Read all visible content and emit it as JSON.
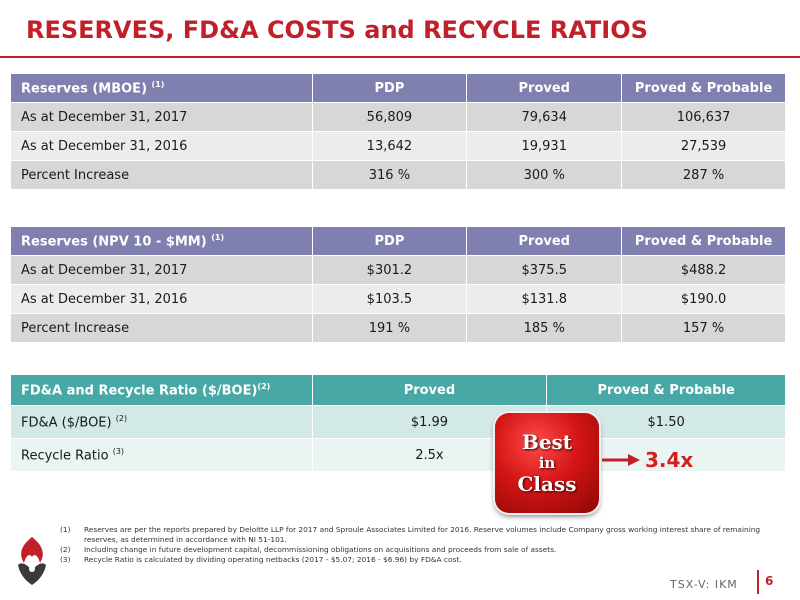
{
  "title": "RESERVES, FD&A COSTS and RECYCLE RATIOS",
  "table1": {
    "header": {
      "label": "Reserves (MBOE)",
      "note": "(1)",
      "cols": [
        "PDP",
        "Proved",
        "Proved & Probable"
      ]
    },
    "rows": [
      {
        "label": "As at December 31, 2017",
        "values": [
          "56,809",
          "79,634",
          "106,637"
        ]
      },
      {
        "label": "As at December 31, 2016",
        "values": [
          "13,642",
          "19,931",
          "27,539"
        ]
      },
      {
        "label": "Percent Increase",
        "values": [
          "316 %",
          "300 %",
          "287 %"
        ]
      }
    ]
  },
  "table2": {
    "header": {
      "label": "Reserves (NPV 10 - $MM)",
      "note": "(1)",
      "cols": [
        "PDP",
        "Proved",
        "Proved & Probable"
      ]
    },
    "rows": [
      {
        "label": "As at December 31, 2017",
        "values": [
          "$301.2",
          "$375.5",
          "$488.2"
        ]
      },
      {
        "label": "As at December 31, 2016",
        "values": [
          "$103.5",
          "$131.8",
          "$190.0"
        ]
      },
      {
        "label": "Percent Increase",
        "values": [
          "191 %",
          "185 %",
          "157 %"
        ]
      }
    ]
  },
  "table3": {
    "header": {
      "label": "FD&A and Recycle Ratio ($/BOE)",
      "note": "(2)",
      "cols": [
        "Proved",
        "Proved & Probable"
      ]
    },
    "rows": [
      {
        "label": "FD&A ($/BOE)",
        "note": "(2)",
        "values": [
          "$1.99",
          "$1.50"
        ]
      },
      {
        "label": "Recycle Ratio",
        "note": "(3)",
        "values": [
          "2.5x",
          ""
        ]
      }
    ]
  },
  "badge": {
    "line1": "Best",
    "line2": "in",
    "line3": "Class"
  },
  "highlight_value": "3.4x",
  "footnotes": [
    {
      "num": "(1)",
      "text": "Reserves are per the reports prepared by Deloitte LLP for 2017 and Sproule Associates Limited for 2016. Reserve volumes include Company gross working interest share of remaining reserves, as determined in accordance with NI 51-101."
    },
    {
      "num": "(2)",
      "text": "Including change in future development capital, decommissioning obligations on acquisitions and proceeds from sale of assets."
    },
    {
      "num": "(3)",
      "text": "Recycle Ratio is calculated by dividing operating netbacks (2017 - $5.07; 2016 - $6.96) by FD&A cost."
    }
  ],
  "ticker": "TSX-V: IKM",
  "page_number": "6",
  "colors": {
    "accent": "#c0202a",
    "table_header_purple": "#8080b0",
    "table_header_teal": "#47a8a5",
    "badge": "#d41515"
  }
}
